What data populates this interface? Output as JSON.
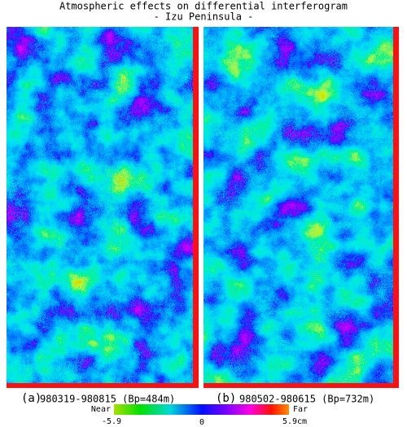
{
  "header": {
    "title": "Atmospheric effects on differential interferogram",
    "subtitle": "- Izu Peninsula -"
  },
  "panels": [
    {
      "label": "(a)",
      "caption": "980319-980815 (Bp=484m)"
    },
    {
      "label": "(b)",
      "caption": "980502-980615 (Bp=732m)"
    }
  ],
  "colorbar": {
    "left_label": "Near",
    "right_label": "Far",
    "min_label": "-5.9",
    "mid_label": "0",
    "max_label": "5.9cm"
  }
}
